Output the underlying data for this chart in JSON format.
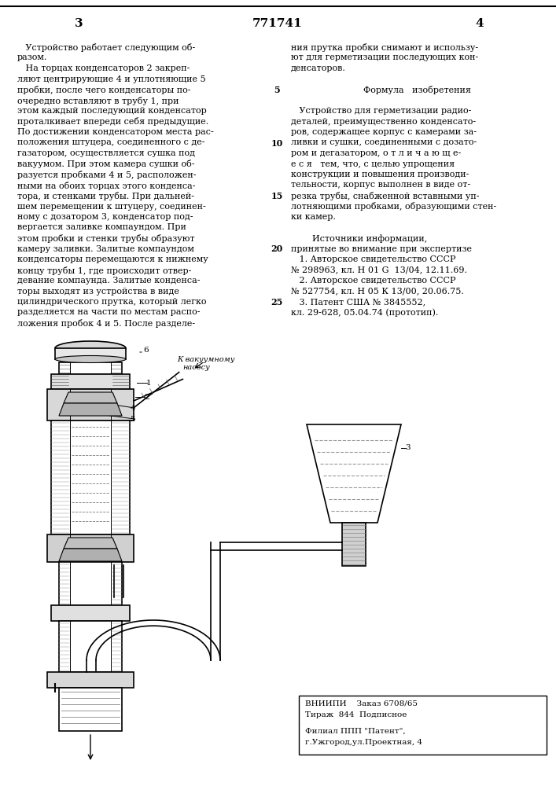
{
  "background_color": "#ffffff",
  "page_number_left": "3",
  "page_number_center": "771741",
  "page_number_right": "4",
  "left_col_lines": [
    "   Устройство работает следующим об-",
    "разом.",
    "   На торцах конденсаторов 2 закреп-",
    "ляют центрирующие 4 и уплотняющие 5",
    "пробки, после чего конденсаторы по-",
    "очередно вставляют в трубу 1, при",
    "этом каждый последующий конденсатор",
    "проталкивает впереди себя предыдущие.",
    "По достижении конденсатором места рас-",
    "положения штуцера, соединенного с де-",
    "газатором, осуществляется сушка под",
    "вакуумом. При этом камера сушки об-",
    "разуется пробками 4 и 5, расположен-",
    "ными на обоих торцах этого конденса-",
    "тора, и стенками трубы. При дальней-",
    "шем перемещении к штуцеру, соединен-",
    "ному с дозатором 3, конденсатор под-",
    "вергается заливке компаундом. При",
    "этом пробки и стенки трубы образуют",
    "камеру заливки. Залитые компаундом",
    "конденсаторы перемещаются к нижнему",
    "концу трубы 1, где происходит отвер-",
    "девание компаунда. Залитые конденса-",
    "торы выходят из устройства в виде",
    "цилиндрического прутка, который легко",
    "разделяется на части по местам распо-",
    "ложения пробок 4 и 5. После разделе-"
  ],
  "right_col_lines": [
    "ния прутка пробки снимают и использу-",
    "ют для герметизации последующих кон-",
    "денсаторов.",
    "",
    "      Формула   изобретения",
    "",
    "   Устройство для герметизации радио-",
    "деталей, преимущественно конденсато-",
    "ров, содержащее корпус с камерами за-",
    "ливки и сушки, соединенными с дозато-",
    "ром и дегазатором, о т л и ч а ю щ е-",
    "е с я   тем, что, с целью упрощения",
    "конструкции и повышения производи-",
    "тельности, корпус выполнен в виде от-",
    "резка трубы, снабженной вставными уп-",
    "лотняющими пробками, образующими стен-",
    "ки камер.",
    "",
    "      Источники информации,",
    "принятые во внимание при экспертизе",
    "   1. Авторское свидетельство СССР",
    "№ 298963, кл. Н 01 G  13/04, 12.11.69.",
    "   2. Авторское свидетельство СССР",
    "№ 527754, кл. Н 05 К 13/00, 20.06.75.",
    "   3. Патент США № 3845552,",
    "кл. 29-628, 05.04.74 (прототип)."
  ],
  "line_numbers": [
    {
      "row": 4,
      "text": "5"
    },
    {
      "row": 9,
      "text": "10"
    },
    {
      "row": 14,
      "text": "15"
    },
    {
      "row": 19,
      "text": "20"
    },
    {
      "row": 24,
      "text": "25"
    }
  ],
  "bottom_box_lines_top": [
    "ВНИИПИ    Заказ 6708/65",
    "Тираж  844  Подписное"
  ],
  "bottom_box_lines_bottom": [
    "Филиал ППП \"Патент\",",
    "г.Ужгород,ул.Проектная, 4"
  ]
}
